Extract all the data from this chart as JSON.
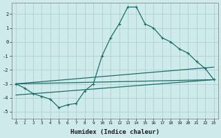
{
  "xlabel": "Humidex (Indice chaleur)",
  "background_color": "#ceeaea",
  "grid_color": "#aed0d0",
  "line_color": "#1a6e6a",
  "xlim": [
    -0.5,
    23.5
  ],
  "ylim": [
    -5.5,
    2.8
  ],
  "xticks": [
    0,
    1,
    2,
    3,
    4,
    5,
    6,
    7,
    8,
    9,
    10,
    11,
    12,
    13,
    14,
    15,
    16,
    17,
    18,
    19,
    20,
    21,
    22,
    23
  ],
  "yticks": [
    -5,
    -4,
    -3,
    -2,
    -1,
    0,
    1,
    2
  ],
  "line1_x": [
    0,
    1,
    2,
    3,
    4,
    5,
    6,
    7,
    8,
    9,
    10,
    11,
    12,
    13,
    14,
    15,
    16,
    17,
    18,
    19,
    20,
    21,
    22,
    23
  ],
  "line1_y": [
    -3.0,
    -3.3,
    -3.7,
    -3.9,
    -4.1,
    -4.7,
    -4.5,
    -4.4,
    -3.5,
    -3.0,
    -1.0,
    0.3,
    1.3,
    2.5,
    2.5,
    1.3,
    1.0,
    0.3,
    0.0,
    -0.5,
    -0.8,
    -1.4,
    -1.9,
    -2.7
  ],
  "line2_x": [
    0,
    23
  ],
  "line2_y": [
    -3.0,
    -1.8
  ],
  "line3_x": [
    0,
    23
  ],
  "line3_y": [
    -3.0,
    -2.7
  ],
  "line4_x": [
    0,
    23
  ],
  "line4_y": [
    -3.8,
    -2.7
  ]
}
